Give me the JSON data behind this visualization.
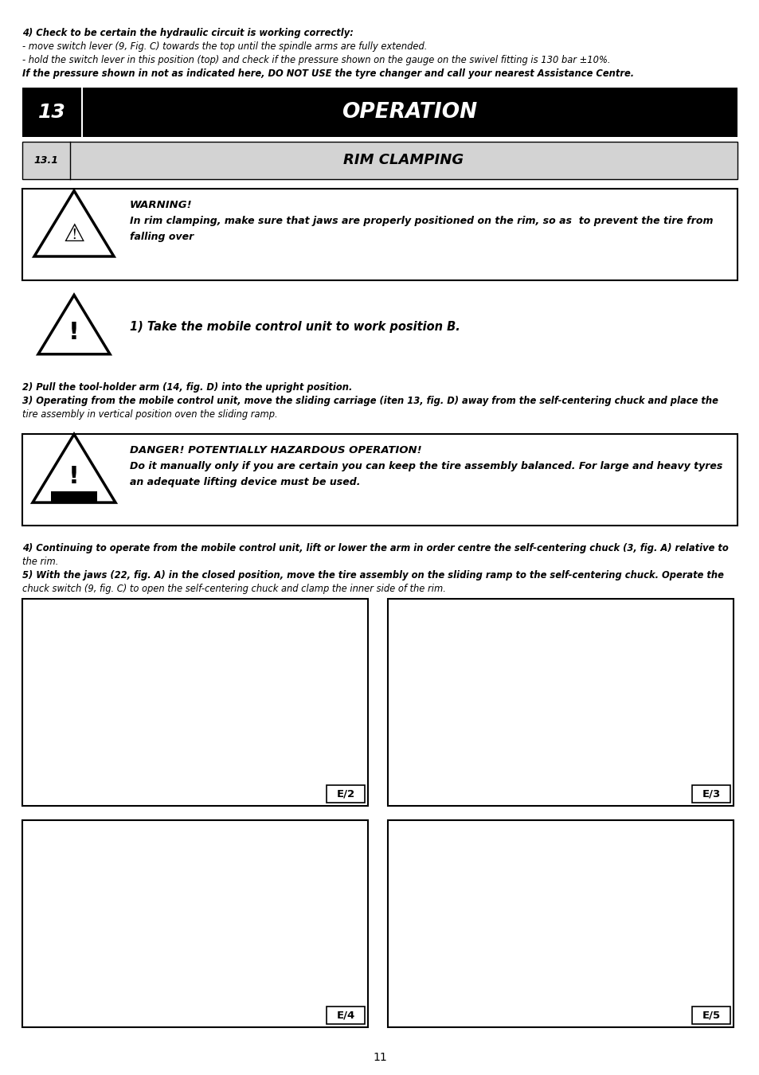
{
  "page_bg": "#ffffff",
  "top_text": [
    {
      "text": "4) Check to be certain the hydraulic circuit is working correctly:",
      "bold": true
    },
    {
      "text": "- move switch lever (9, Fig. C) towards the top until the spindle arms are fully extended.",
      "bold": false
    },
    {
      "text": "- hold the switch lever in this position (top) and check if the pressure shown on the gauge on the swivel fitting is 130 bar ±10%.",
      "bold": false
    },
    {
      "text": "If the pressure shown in not as indicated here, DO NOT USE the tyre changer and call your nearest Assistance Centre.",
      "bold": true
    }
  ],
  "section_num": "13",
  "section_title": "OPERATION",
  "subsection_num": "13.1",
  "subsection_title": "RIM CLAMPING",
  "warning_title": "WARNING!",
  "warning_lines": [
    "In rim clamping, make sure that jaws are properly positioned on the rim, so as  to prevent the tire from",
    "falling over"
  ],
  "caution_text": "1) Take the mobile control unit to work position B.",
  "body1": [
    {
      "text": "2) Pull the tool-holder arm (14, fig. D) into the upright position.",
      "bold": true
    },
    {
      "text": "3) Operating from the mobile control unit, move the sliding carriage (iten 13, fig. D) away from the self-centering chuck and place the",
      "bold": true
    },
    {
      "text": "tire assembly in vertical position oven the sliding ramp.",
      "bold": false
    }
  ],
  "danger_title": "DANGER! POTENTIALLY HAZARDOUS OPERATION!",
  "danger_lines": [
    "Do it manually only if you are certain you can keep the tire assembly balanced. For large and heavy tyres",
    "an adequate lifting device must be used."
  ],
  "body2": [
    {
      "text": "4) Continuing to operate from the mobile control unit, lift or lower the arm in order centre the self-centering chuck (3, fig. A) relative to",
      "bold": true
    },
    {
      "text": "the rim.",
      "bold": false
    },
    {
      "text": "5) With the jaws (22, fig. A) in the closed position, move the tire assembly on the sliding ramp to the self-centering chuck. Operate the",
      "bold": true
    },
    {
      "text": "chuck switch (9, fig. C) to open the self-centering chuck and clamp the inner side of the rim.",
      "bold": false
    }
  ],
  "images": [
    {
      "label": "E/2",
      "col": 0,
      "row": 0
    },
    {
      "label": "E/3",
      "col": 1,
      "row": 0
    },
    {
      "label": "E/4",
      "col": 0,
      "row": 1
    },
    {
      "label": "E/5",
      "col": 1,
      "row": 1
    }
  ],
  "page_number": "11"
}
